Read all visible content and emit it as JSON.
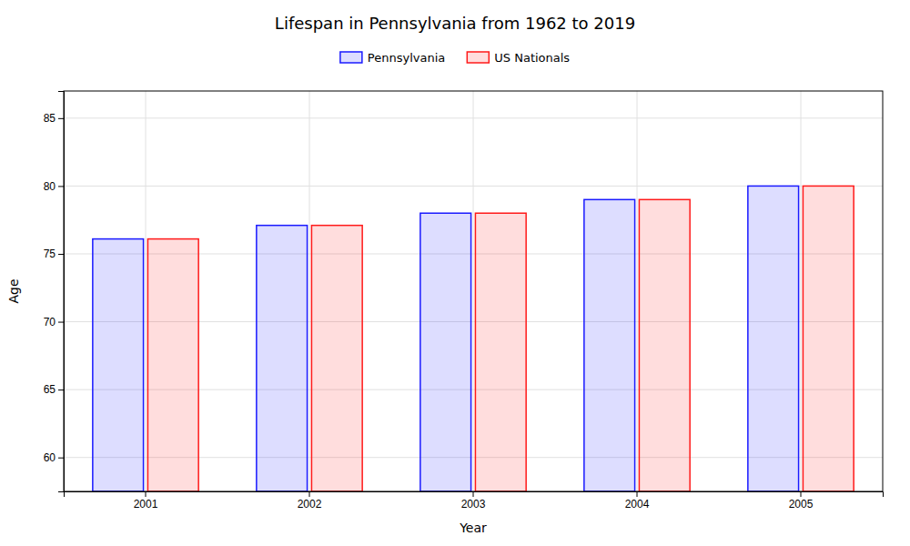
{
  "chart_data": {
    "type": "bar",
    "title": "Lifespan in Pennsylvania from 1962 to 2019",
    "xlabel": "Year",
    "ylabel": "Age",
    "categories": [
      "2001",
      "2002",
      "2003",
      "2004",
      "2005"
    ],
    "series": [
      {
        "name": "Pennsylvania",
        "color": "#1a1aff",
        "values": [
          76.1,
          77.1,
          78.0,
          79.0,
          80.0
        ]
      },
      {
        "name": "US Nationals",
        "color": "#ff1a1a",
        "values": [
          76.1,
          77.1,
          78.0,
          79.0,
          80.0
        ]
      }
    ],
    "ylim": [
      57.5,
      87
    ],
    "yticks": [
      60,
      65,
      70,
      75,
      80,
      85
    ],
    "grid": true,
    "legend": "top"
  }
}
